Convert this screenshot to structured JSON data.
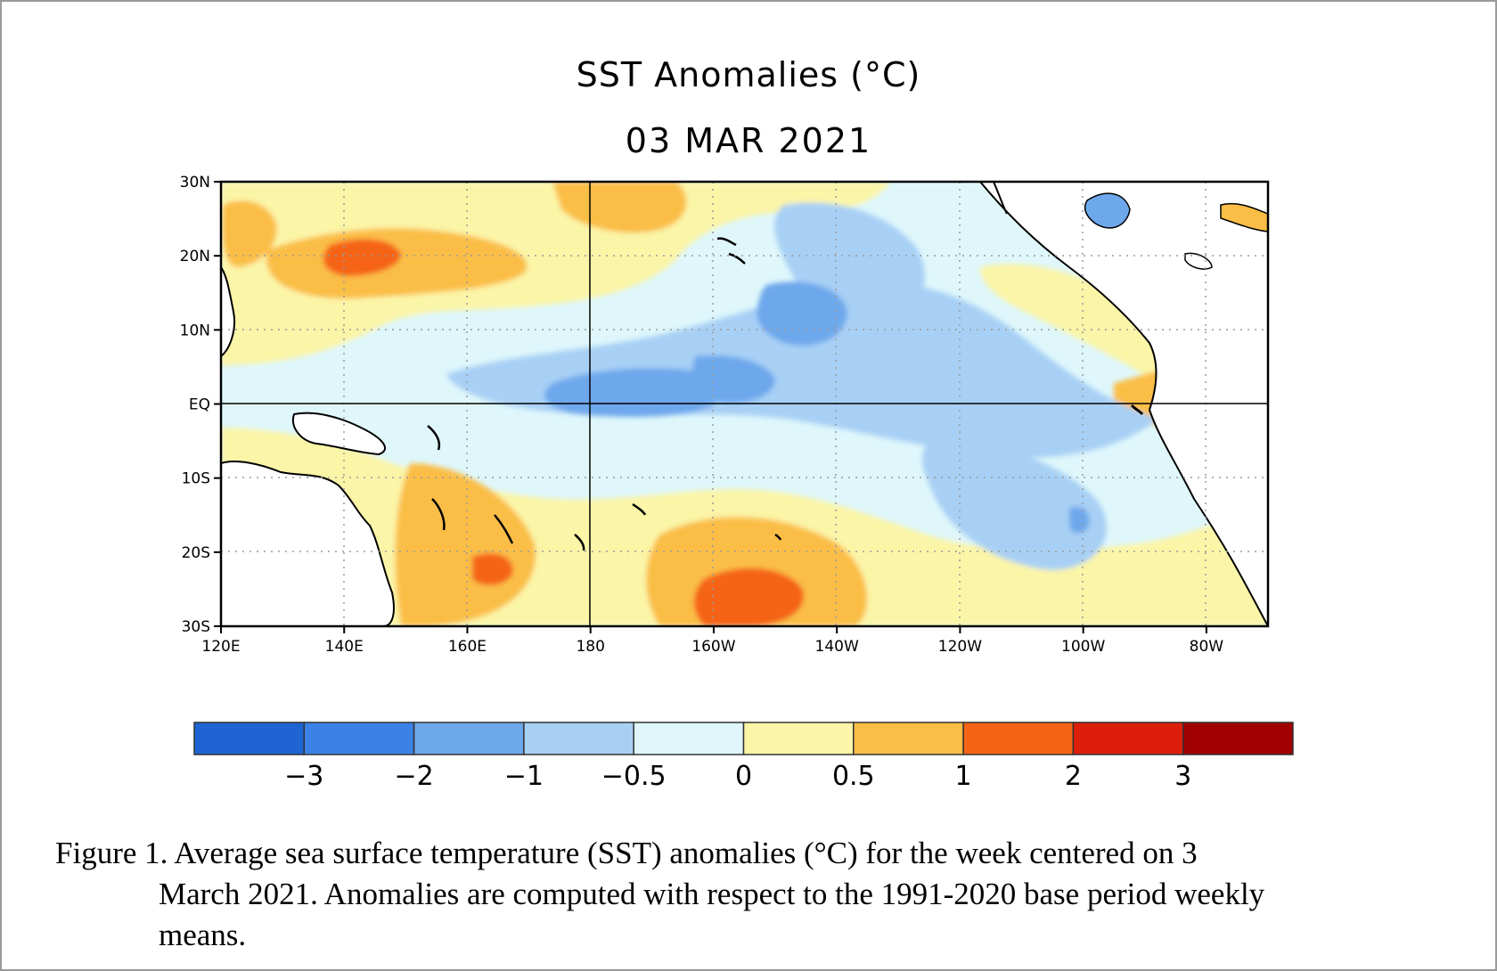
{
  "title": "SST Anomalies (°C)",
  "date": "03 MAR 2021",
  "map": {
    "lon_range_deg_east": [
      120,
      290
    ],
    "lat_range": [
      -30,
      30
    ],
    "lat_ticks": [
      {
        "value": 30,
        "label": "30N"
      },
      {
        "value": 20,
        "label": "20N"
      },
      {
        "value": 10,
        "label": "10N"
      },
      {
        "value": 0,
        "label": "EQ"
      },
      {
        "value": -10,
        "label": "10S"
      },
      {
        "value": -20,
        "label": "20S"
      },
      {
        "value": -30,
        "label": "30S"
      }
    ],
    "lon_ticks": [
      {
        "value": 120,
        "label": "120E"
      },
      {
        "value": 140,
        "label": "140E"
      },
      {
        "value": 160,
        "label": "160E"
      },
      {
        "value": 180,
        "label": "180"
      },
      {
        "value": 200,
        "label": "160W"
      },
      {
        "value": 220,
        "label": "140W"
      },
      {
        "value": 240,
        "label": "120W"
      },
      {
        "value": 260,
        "label": "100W"
      },
      {
        "value": 280,
        "label": "80W"
      }
    ],
    "grid": "dotted",
    "reference_lines": [
      "equator",
      "180"
    ]
  },
  "colorbar": {
    "colors": [
      "#1e64d2",
      "#3c82e6",
      "#6ea8ec",
      "#a8d0f5",
      "#dff7fb",
      "#fbf5a8",
      "#fabe46",
      "#f56414",
      "#dc1e0a",
      "#a00000"
    ],
    "ticks": [
      "−3",
      "−2",
      "−1",
      "−0.5",
      "0",
      "0.5",
      "1",
      "2",
      "3"
    ]
  },
  "caption": {
    "line1": "Figure  1. Average sea surface temperature (SST) anomalies  (°C) for the week centered on 3",
    "line2": "March 2021.  Anomalies  are computed with respect to the 1991-2020  base period weekly",
    "line3": "means."
  }
}
